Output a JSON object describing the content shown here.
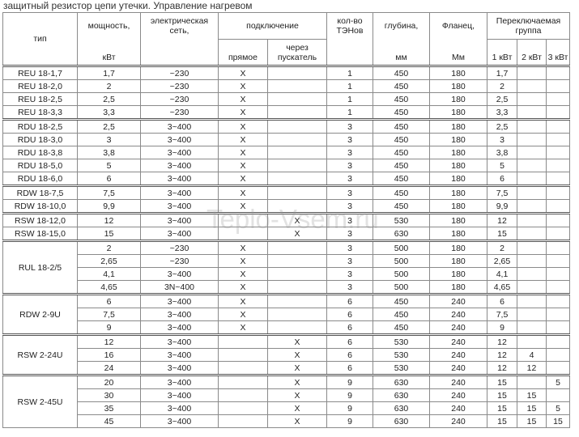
{
  "title": "защитный резистор цепи утечки. Управление нагревом",
  "watermark": "Teplo-Vsem.ru",
  "header": {
    "type": "тип",
    "power": "мощность,",
    "power_unit": "кВт",
    "network": "электрическая сеть,",
    "connection": "подключение",
    "direct": "прямое",
    "via_starter": "через пускатель",
    "heaters": "кол-во ТЭНов",
    "depth": "глубина,",
    "depth_unit": "мм",
    "flange": "Фланец,",
    "flange_unit": "Мм",
    "group": "Переключаемая группа",
    "g1": "1 кВт",
    "g2": "2 кВт",
    "g3": "3 кВт"
  },
  "groups": [
    {
      "rows": [
        [
          "REU 18-1,7",
          "1,7",
          "~230",
          "X",
          "",
          "1",
          "450",
          "180",
          "1,7",
          "",
          ""
        ],
        [
          "REU 18-2,0",
          "2",
          "~230",
          "X",
          "",
          "1",
          "450",
          "180",
          "2",
          "",
          ""
        ],
        [
          "REU 18-2,5",
          "2,5",
          "~230",
          "X",
          "",
          "1",
          "450",
          "180",
          "2,5",
          "",
          ""
        ],
        [
          "REU 18-3,3",
          "3,3",
          "~230",
          "X",
          "",
          "1",
          "450",
          "180",
          "3,3",
          "",
          ""
        ]
      ]
    },
    {
      "rows": [
        [
          "RDU 18-2,5",
          "2,5",
          "3~400",
          "X",
          "",
          "3",
          "450",
          "180",
          "2,5",
          "",
          ""
        ],
        [
          "RDU 18-3,0",
          "3",
          "3~400",
          "X",
          "",
          "3",
          "450",
          "180",
          "3",
          "",
          ""
        ],
        [
          "RDU 18-3,8",
          "3,8",
          "3~400",
          "X",
          "",
          "3",
          "450",
          "180",
          "3,8",
          "",
          ""
        ],
        [
          "RDU 18-5,0",
          "5",
          "3~400",
          "X",
          "",
          "3",
          "450",
          "180",
          "5",
          "",
          ""
        ],
        [
          "RDU 18-6,0",
          "6",
          "3~400",
          "X",
          "",
          "3",
          "450",
          "180",
          "6",
          "",
          ""
        ]
      ]
    },
    {
      "rows": [
        [
          "RDW 18-7,5",
          "7,5",
          "3~400",
          "X",
          "",
          "3",
          "450",
          "180",
          "7,5",
          "",
          ""
        ],
        [
          "RDW 18-10,0",
          "9,9",
          "3~400",
          "X",
          "",
          "3",
          "450",
          "180",
          "9,9",
          "",
          ""
        ]
      ]
    },
    {
      "rows": [
        [
          "RSW 18-12,0",
          "12",
          "3~400",
          "",
          "X",
          "3",
          "530",
          "180",
          "12",
          "",
          ""
        ],
        [
          "RSW 18-15,0",
          "15",
          "3~400",
          "",
          "X",
          "3",
          "630",
          "180",
          "15",
          "",
          ""
        ]
      ]
    },
    {
      "type": "RUL 18-2/5",
      "rows": [
        [
          "2",
          "~230",
          "X",
          "",
          "3",
          "500",
          "180",
          "2",
          "",
          ""
        ],
        [
          "2,65",
          "~230",
          "X",
          "",
          "3",
          "500",
          "180",
          "2,65",
          "",
          ""
        ],
        [
          "4,1",
          "3~400",
          "X",
          "",
          "3",
          "500",
          "180",
          "4,1",
          "",
          ""
        ],
        [
          "4,65",
          "3N~400",
          "X",
          "",
          "3",
          "500",
          "180",
          "4,65",
          "",
          ""
        ]
      ]
    },
    {
      "type": "RDW 2-9U",
      "rows": [
        [
          "6",
          "3~400",
          "X",
          "",
          "6",
          "450",
          "240",
          "6",
          "",
          ""
        ],
        [
          "7,5",
          "3~400",
          "X",
          "",
          "6",
          "450",
          "240",
          "7,5",
          "",
          ""
        ],
        [
          "9",
          "3~400",
          "X",
          "",
          "6",
          "450",
          "240",
          "9",
          "",
          ""
        ]
      ]
    },
    {
      "type": "RSW 2-24U",
      "rows": [
        [
          "12",
          "3~400",
          "",
          "X",
          "6",
          "530",
          "240",
          "12",
          "",
          ""
        ],
        [
          "16",
          "3~400",
          "",
          "X",
          "6",
          "530",
          "240",
          "12",
          "4",
          ""
        ],
        [
          "24",
          "3~400",
          "",
          "X",
          "6",
          "530",
          "240",
          "12",
          "12",
          ""
        ]
      ]
    },
    {
      "type": "RSW 2-45U",
      "rows": [
        [
          "20",
          "3~400",
          "",
          "X",
          "9",
          "630",
          "240",
          "15",
          "",
          "5"
        ],
        [
          "30",
          "3~400",
          "",
          "X",
          "9",
          "630",
          "240",
          "15",
          "15",
          ""
        ],
        [
          "35",
          "3~400",
          "",
          "X",
          "9",
          "630",
          "240",
          "15",
          "15",
          "5"
        ],
        [
          "45",
          "3~400",
          "",
          "X",
          "9",
          "630",
          "240",
          "15",
          "15",
          "15"
        ]
      ]
    }
  ]
}
